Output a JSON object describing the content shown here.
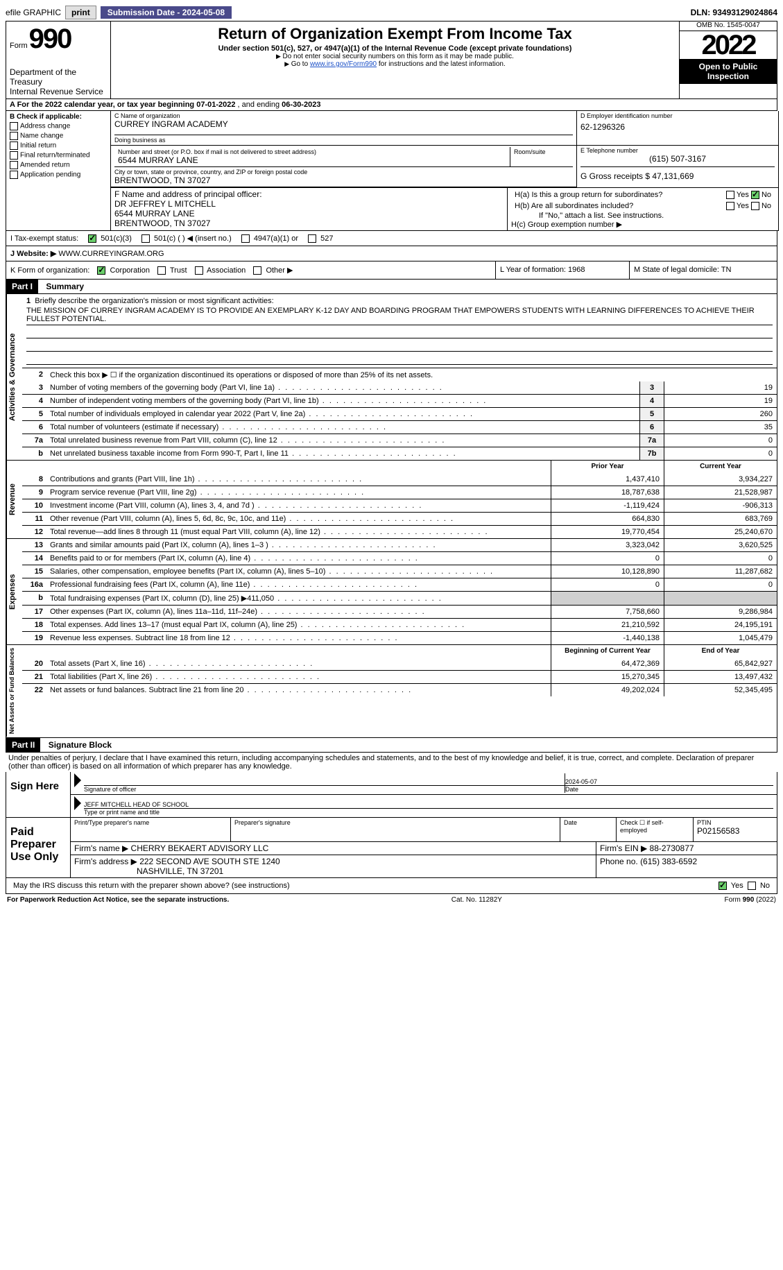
{
  "topbar": {
    "efile": "efile GRAPHIC",
    "print": "print",
    "submission": "Submission Date - 2024-05-08",
    "dln": "DLN: 93493129024864"
  },
  "header": {
    "form_word": "Form",
    "form_num": "990",
    "title": "Return of Organization Exempt From Income Tax",
    "subtitle": "Under section 501(c), 527, or 4947(a)(1) of the Internal Revenue Code (except private foundations)",
    "note1": "Do not enter social security numbers on this form as it may be made public.",
    "note2_pre": "Go to ",
    "note2_link": "www.irs.gov/Form990",
    "note2_post": " for instructions and the latest information.",
    "dept": "Department of the Treasury",
    "irs": "Internal Revenue Service",
    "omb": "OMB No. 1545-0047",
    "year": "2022",
    "open": "Open to Public Inspection"
  },
  "rowA": {
    "label": "A For the 2022 calendar year, or tax year beginning ",
    "begin": "07-01-2022",
    "mid": "   , and ending ",
    "end": "06-30-2023"
  },
  "colB": {
    "label": "B Check if applicable:",
    "opts": [
      "Address change",
      "Name change",
      "Initial return",
      "Final return/terminated",
      "Amended return",
      "Application pending"
    ]
  },
  "colC": {
    "name_label": "C Name of organization",
    "name": "CURREY INGRAM ACADEMY",
    "dba_label": "Doing business as",
    "dba": "",
    "addr_label": "Number and street (or P.O. box if mail is not delivered to street address)",
    "room_label": "Room/suite",
    "addr": "6544 MURRAY LANE",
    "city_label": "City or town, state or province, country, and ZIP or foreign postal code",
    "city": "BRENTWOOD, TN  37027",
    "f_label": "F Name and address of principal officer:",
    "f_name": "DR JEFFREY L MITCHELL",
    "f_addr1": "6544 MURRAY LANE",
    "f_addr2": "BRENTWOOD, TN  37027"
  },
  "colD": {
    "ein_label": "D Employer identification number",
    "ein": "62-1296326",
    "tel_label": "E Telephone number",
    "tel": "(615) 507-3167",
    "gross_label": "G Gross receipts $ ",
    "gross": "47,131,669"
  },
  "colH": {
    "ha": "H(a)  Is this a group return for subordinates?",
    "hb": "H(b)  Are all subordinates included?",
    "hb_note": "If \"No,\" attach a list. See instructions.",
    "hc": "H(c)  Group exemption number ▶",
    "yes": "Yes",
    "no": "No"
  },
  "rowI": {
    "label": "I    Tax-exempt status:",
    "opt1": "501(c)(3)",
    "opt2": "501(c) (  ) ◀ (insert no.)",
    "opt3": "4947(a)(1) or",
    "opt4": "527"
  },
  "rowJ": {
    "label": "J    Website: ▶ ",
    "value": "WWW.CURREYINGRAM.ORG"
  },
  "rowK": {
    "label": "K Form of organization:",
    "opts": [
      "Corporation",
      "Trust",
      "Association",
      "Other ▶"
    ],
    "l_label": "L Year of formation: ",
    "l_val": "1968",
    "m_label": "M State of legal domicile: ",
    "m_val": "TN"
  },
  "part1": {
    "header": "Part I",
    "title": "Summary",
    "mission_label": "Briefly describe the organization's mission or most significant activities:",
    "mission": "THE MISSION OF CURREY INGRAM ACADEMY IS TO PROVIDE AN EXEMPLARY K-12 DAY AND BOARDING PROGRAM THAT EMPOWERS STUDENTS WITH LEARNING DIFFERENCES TO ACHIEVE THEIR FULLEST POTENTIAL.",
    "line2": "Check this box ▶ ☐  if the organization discontinued its operations or disposed of more than 25% of its net assets.",
    "prior_hdr": "Prior Year",
    "current_hdr": "Current Year",
    "begin_hdr": "Beginning of Current Year",
    "end_hdr": "End of Year",
    "vlabel_ag": "Activities & Governance",
    "vlabel_rev": "Revenue",
    "vlabel_exp": "Expenses",
    "vlabel_net": "Net Assets or Fund Balances",
    "lines_ag": [
      {
        "n": "3",
        "t": "Number of voting members of the governing body (Part VI, line 1a)",
        "box": "3",
        "v": "19"
      },
      {
        "n": "4",
        "t": "Number of independent voting members of the governing body (Part VI, line 1b)",
        "box": "4",
        "v": "19"
      },
      {
        "n": "5",
        "t": "Total number of individuals employed in calendar year 2022 (Part V, line 2a)",
        "box": "5",
        "v": "260"
      },
      {
        "n": "6",
        "t": "Total number of volunteers (estimate if necessary)",
        "box": "6",
        "v": "35"
      },
      {
        "n": "7a",
        "t": "Total unrelated business revenue from Part VIII, column (C), line 12",
        "box": "7a",
        "v": "0"
      },
      {
        "n": "b",
        "t": "Net unrelated business taxable income from Form 990-T, Part I, line 11",
        "box": "7b",
        "v": "0"
      }
    ],
    "lines_rev": [
      {
        "n": "8",
        "t": "Contributions and grants (Part VIII, line 1h)",
        "p": "1,437,410",
        "c": "3,934,227"
      },
      {
        "n": "9",
        "t": "Program service revenue (Part VIII, line 2g)",
        "p": "18,787,638",
        "c": "21,528,987"
      },
      {
        "n": "10",
        "t": "Investment income (Part VIII, column (A), lines 3, 4, and 7d )",
        "p": "-1,119,424",
        "c": "-906,313"
      },
      {
        "n": "11",
        "t": "Other revenue (Part VIII, column (A), lines 5, 6d, 8c, 9c, 10c, and 11e)",
        "p": "664,830",
        "c": "683,769"
      },
      {
        "n": "12",
        "t": "Total revenue—add lines 8 through 11 (must equal Part VIII, column (A), line 12)",
        "p": "19,770,454",
        "c": "25,240,670"
      }
    ],
    "lines_exp": [
      {
        "n": "13",
        "t": "Grants and similar amounts paid (Part IX, column (A), lines 1–3 )",
        "p": "3,323,042",
        "c": "3,620,525"
      },
      {
        "n": "14",
        "t": "Benefits paid to or for members (Part IX, column (A), line 4)",
        "p": "0",
        "c": "0"
      },
      {
        "n": "15",
        "t": "Salaries, other compensation, employee benefits (Part IX, column (A), lines 5–10)",
        "p": "10,128,890",
        "c": "11,287,682"
      },
      {
        "n": "16a",
        "t": "Professional fundraising fees (Part IX, column (A), line 11e)",
        "p": "0",
        "c": "0"
      },
      {
        "n": "b",
        "t": "Total fundraising expenses (Part IX, column (D), line 25) ▶411,050",
        "p": "shade",
        "c": "shade"
      },
      {
        "n": "17",
        "t": "Other expenses (Part IX, column (A), lines 11a–11d, 11f–24e)",
        "p": "7,758,660",
        "c": "9,286,984"
      },
      {
        "n": "18",
        "t": "Total expenses. Add lines 13–17 (must equal Part IX, column (A), line 25)",
        "p": "21,210,592",
        "c": "24,195,191"
      },
      {
        "n": "19",
        "t": "Revenue less expenses. Subtract line 18 from line 12",
        "p": "-1,440,138",
        "c": "1,045,479"
      }
    ],
    "lines_net": [
      {
        "n": "20",
        "t": "Total assets (Part X, line 16)",
        "p": "64,472,369",
        "c": "65,842,927"
      },
      {
        "n": "21",
        "t": "Total liabilities (Part X, line 26)",
        "p": "15,270,345",
        "c": "13,497,432"
      },
      {
        "n": "22",
        "t": "Net assets or fund balances. Subtract line 21 from line 20",
        "p": "49,202,024",
        "c": "52,345,495"
      }
    ]
  },
  "part2": {
    "header": "Part II",
    "title": "Signature Block",
    "penalty": "Under penalties of perjury, I declare that I have examined this return, including accompanying schedules and statements, and to the best of my knowledge and belief, it is true, correct, and complete. Declaration of preparer (other than officer) is based on all information of which preparer has any knowledge.",
    "sign_here": "Sign Here",
    "sig_officer": "Signature of officer",
    "sig_date": "2024-05-07",
    "date_label": "Date",
    "officer_name": "JEFF MITCHELL HEAD OF SCHOOL",
    "type_name": "Type or print name and title",
    "paid": "Paid Preparer Use Only",
    "prep_name_label": "Print/Type preparer's name",
    "prep_sig_label": "Preparer's signature",
    "check_label": "Check ☐ if self-employed",
    "ptin_label": "PTIN",
    "ptin": "P02156583",
    "firm_name_label": "Firm's name    ▶ ",
    "firm_name": "CHERRY BEKAERT ADVISORY LLC",
    "firm_ein_label": "Firm's EIN ▶ ",
    "firm_ein": "88-2730877",
    "firm_addr_label": "Firm's address ▶ ",
    "firm_addr": "222 SECOND AVE SOUTH STE 1240",
    "firm_city": "NASHVILLE, TN  37201",
    "phone_label": "Phone no. ",
    "phone": "(615) 383-6592",
    "discuss": "May the IRS discuss this return with the preparer shown above? (see instructions)",
    "yes": "Yes",
    "no": "No"
  },
  "footer": {
    "left": "For Paperwork Reduction Act Notice, see the separate instructions.",
    "mid": "Cat. No. 11282Y",
    "right": "Form 990 (2022)"
  }
}
